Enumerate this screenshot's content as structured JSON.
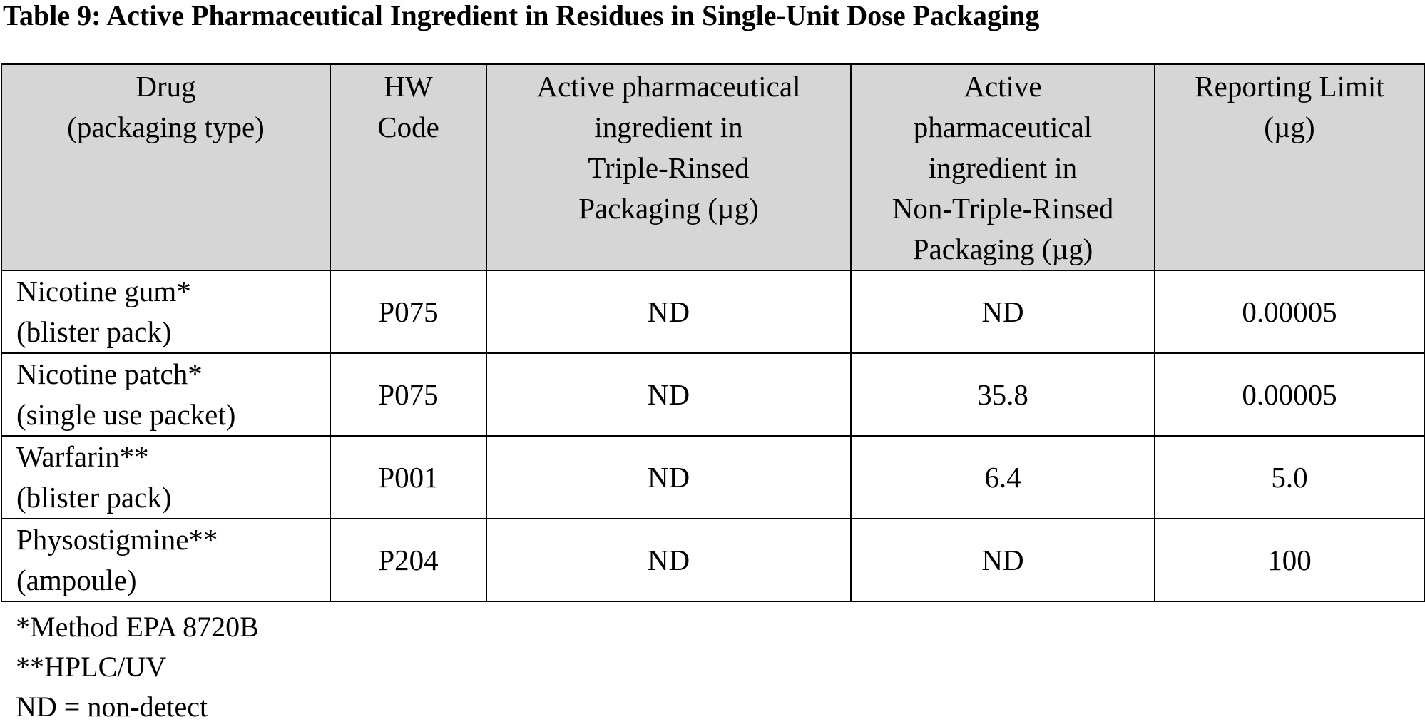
{
  "title": "Table 9: Active Pharmaceutical Ingredient in Residues in Single-Unit Dose Packaging",
  "table": {
    "header": [
      "Drug\n(packaging type)",
      "HW\nCode",
      "Active pharmaceutical\ningredient in\nTriple-Rinsed\nPackaging (µg)",
      "Active\npharmaceutical\ningredient in\nNon-Triple-Rinsed\nPackaging (µg)",
      "Reporting Limit\n(µg)"
    ],
    "rows": [
      [
        "Nicotine gum*\n(blister pack)",
        "P075",
        "ND",
        "ND",
        "0.00005"
      ],
      [
        "Nicotine patch*\n(single use packet)",
        "P075",
        "ND",
        "35.8",
        "0.00005"
      ],
      [
        "Warfarin**\n(blister pack)",
        "P001",
        "ND",
        "6.4",
        "5.0"
      ],
      [
        "Physostigmine**\n(ampoule)",
        "P204",
        "ND",
        "ND",
        "100"
      ]
    ]
  },
  "footnotes": [
    "*Method EPA 8720B",
    "**HPLC/UV",
    "ND = non-detect"
  ]
}
